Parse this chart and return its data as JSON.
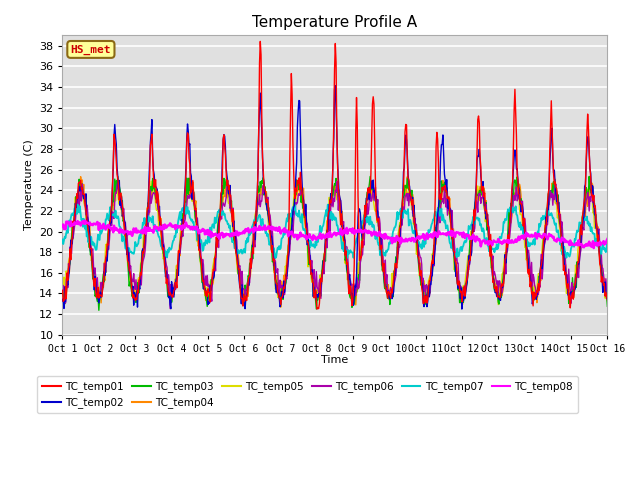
{
  "title": "Temperature Profile A",
  "xlabel": "Time",
  "ylabel": "Temperature (C)",
  "annotation": "HS_met",
  "annotation_bg": "#FFFF99",
  "annotation_border": "#8B6914",
  "annotation_text_color": "#CC0000",
  "xlim": [
    0,
    15
  ],
  "ylim": [
    10,
    39
  ],
  "yticks": [
    10,
    12,
    14,
    16,
    18,
    20,
    22,
    24,
    26,
    28,
    30,
    32,
    34,
    36,
    38
  ],
  "xtick_labels": [
    "Oct 1",
    "Oct 2",
    "Oct 3",
    "Oct 4",
    "Oct 5",
    "Oct 6",
    "Oct 7",
    "Oct 8",
    "Oct 9",
    "Oct 10",
    "Oct 11",
    "Oct 12",
    "Oct 13",
    "Oct 14",
    "Oct 15",
    "Oct 16"
  ],
  "series_colors": {
    "TC_temp01": "#FF0000",
    "TC_temp02": "#0000CC",
    "TC_temp03": "#00BB00",
    "TC_temp04": "#FF8800",
    "TC_temp05": "#DDDD00",
    "TC_temp06": "#AA00AA",
    "TC_temp07": "#00CCCC",
    "TC_temp08": "#FF00FF"
  },
  "bg_color": "#E0E0E0",
  "grid_color": "#FFFFFF",
  "figsize": [
    6.4,
    4.8
  ],
  "dpi": 100
}
